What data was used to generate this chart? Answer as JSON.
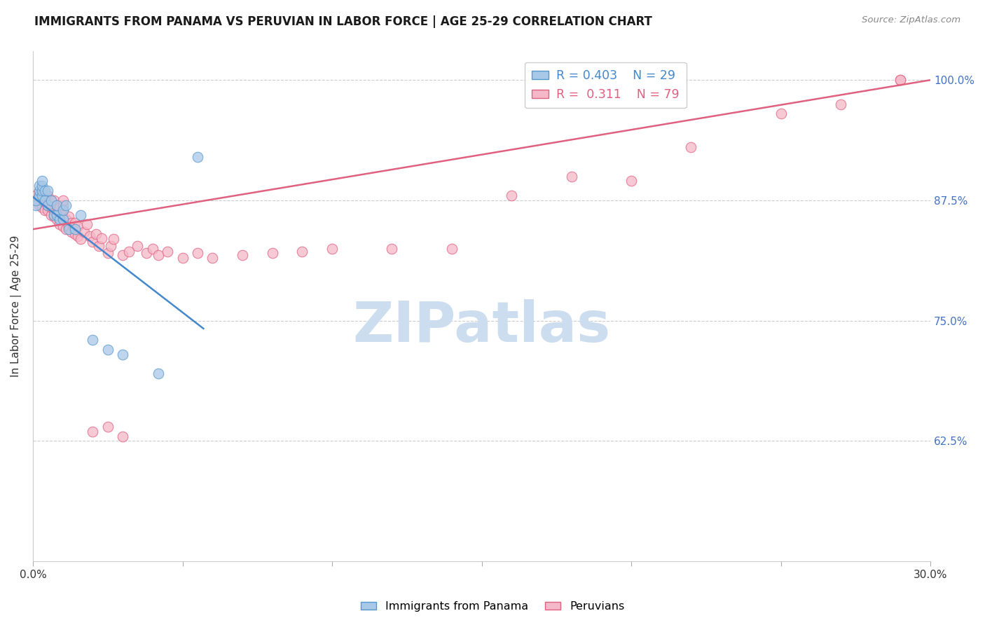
{
  "title": "IMMIGRANTS FROM PANAMA VS PERUVIAN IN LABOR FORCE | AGE 25-29 CORRELATION CHART",
  "source": "Source: ZipAtlas.com",
  "ylabel": "In Labor Force | Age 25-29",
  "xlim": [
    0.0,
    0.3
  ],
  "ylim": [
    0.5,
    1.03
  ],
  "ytick_vals": [
    1.0,
    0.875,
    0.75,
    0.625
  ],
  "ytick_labels": [
    "100.0%",
    "87.5%",
    "75.0%",
    "62.5%"
  ],
  "blue_fill": "#a8c8e8",
  "pink_fill": "#f5b8c8",
  "blue_edge": "#5599cc",
  "pink_edge": "#e06080",
  "blue_line": "#4488cc",
  "pink_line": "#e06080",
  "grid_color": "#cccccc",
  "axis_color": "#cccccc",
  "right_label_color": "#4472c4",
  "text_color": "#333333",
  "watermark_color": "#ccddf0",
  "panama_x": [
    0.001,
    0.001,
    0.002,
    0.002,
    0.002,
    0.003,
    0.003,
    0.003,
    0.003,
    0.004,
    0.004,
    0.005,
    0.005,
    0.006,
    0.007,
    0.008,
    0.008,
    0.009,
    0.01,
    0.01,
    0.011,
    0.012,
    0.014,
    0.016,
    0.02,
    0.025,
    0.03,
    0.042,
    0.055
  ],
  "panama_y": [
    0.87,
    0.875,
    0.88,
    0.885,
    0.89,
    0.88,
    0.885,
    0.89,
    0.895,
    0.875,
    0.885,
    0.87,
    0.885,
    0.875,
    0.86,
    0.86,
    0.87,
    0.855,
    0.855,
    0.865,
    0.87,
    0.845,
    0.845,
    0.86,
    0.73,
    0.72,
    0.715,
    0.695,
    0.92
  ],
  "peru_x": [
    0.001,
    0.001,
    0.002,
    0.002,
    0.002,
    0.003,
    0.003,
    0.003,
    0.004,
    0.004,
    0.005,
    0.005,
    0.005,
    0.005,
    0.006,
    0.006,
    0.006,
    0.007,
    0.007,
    0.007,
    0.008,
    0.008,
    0.008,
    0.009,
    0.009,
    0.009,
    0.01,
    0.01,
    0.01,
    0.01,
    0.01,
    0.011,
    0.011,
    0.012,
    0.012,
    0.013,
    0.013,
    0.014,
    0.014,
    0.015,
    0.015,
    0.016,
    0.017,
    0.018,
    0.019,
    0.02,
    0.021,
    0.022,
    0.023,
    0.025,
    0.026,
    0.027,
    0.03,
    0.032,
    0.035,
    0.038,
    0.04,
    0.042,
    0.045,
    0.05,
    0.055,
    0.06,
    0.07,
    0.08,
    0.09,
    0.1,
    0.12,
    0.14,
    0.16,
    0.18,
    0.2,
    0.22,
    0.25,
    0.27,
    0.29,
    0.02,
    0.025,
    0.03,
    0.29
  ],
  "peru_y": [
    0.875,
    0.88,
    0.87,
    0.88,
    0.885,
    0.868,
    0.875,
    0.88,
    0.865,
    0.875,
    0.865,
    0.87,
    0.875,
    0.88,
    0.86,
    0.868,
    0.875,
    0.858,
    0.865,
    0.875,
    0.855,
    0.862,
    0.87,
    0.85,
    0.86,
    0.868,
    0.848,
    0.858,
    0.865,
    0.87,
    0.875,
    0.845,
    0.855,
    0.848,
    0.858,
    0.842,
    0.852,
    0.84,
    0.852,
    0.838,
    0.848,
    0.835,
    0.842,
    0.85,
    0.838,
    0.832,
    0.84,
    0.828,
    0.836,
    0.82,
    0.828,
    0.835,
    0.818,
    0.822,
    0.828,
    0.82,
    0.825,
    0.818,
    0.822,
    0.815,
    0.82,
    0.815,
    0.818,
    0.82,
    0.822,
    0.825,
    0.825,
    0.825,
    0.88,
    0.9,
    0.895,
    0.93,
    0.965,
    0.975,
    1.0,
    0.635,
    0.64,
    0.63,
    1.0
  ]
}
